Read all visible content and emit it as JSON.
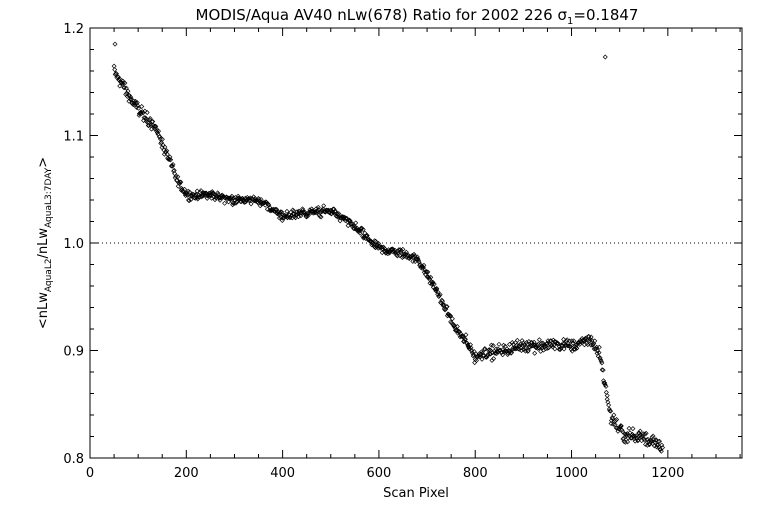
{
  "chart_data": {
    "type": "scatter",
    "title_main": "MODIS/Aqua AV40 nLw(678) Ratio for 2002 226 ",
    "title_sigma": "σ",
    "title_sigma_sub": "1",
    "title_value": "=0.1847",
    "xlabel": "Scan Pixel",
    "ylabel_parts": {
      "open": "<nLw",
      "sub1": "AquaL2",
      "mid": "/nLw",
      "sub2": "AquaL3:7DAY",
      "close": ">"
    },
    "xlim": [
      0,
      1354
    ],
    "ylim": [
      0.8,
      1.2
    ],
    "x_ticks": [
      "0",
      "200",
      "400",
      "600",
      "800",
      "1000",
      "1200"
    ],
    "y_ticks": [
      "0.8",
      "0.9",
      "1.0",
      "1.1",
      "1.2"
    ],
    "reference_line_y": 1.0,
    "grid": false,
    "marker": "diamond",
    "marker_color": "#000000",
    "trend": [
      [
        50,
        1.16
      ],
      [
        70,
        1.145
      ],
      [
        90,
        1.13
      ],
      [
        110,
        1.12
      ],
      [
        140,
        1.105
      ],
      [
        160,
        1.08
      ],
      [
        180,
        1.06
      ],
      [
        200,
        1.045
      ],
      [
        250,
        1.045
      ],
      [
        300,
        1.04
      ],
      [
        350,
        1.04
      ],
      [
        400,
        1.025
      ],
      [
        450,
        1.028
      ],
      [
        500,
        1.03
      ],
      [
        550,
        1.015
      ],
      [
        600,
        0.995
      ],
      [
        650,
        0.99
      ],
      [
        680,
        0.985
      ],
      [
        720,
        0.955
      ],
      [
        760,
        0.92
      ],
      [
        800,
        0.895
      ],
      [
        850,
        0.9
      ],
      [
        900,
        0.905
      ],
      [
        950,
        0.905
      ],
      [
        1000,
        0.905
      ],
      [
        1040,
        0.91
      ],
      [
        1060,
        0.895
      ],
      [
        1080,
        0.84
      ],
      [
        1110,
        0.82
      ],
      [
        1150,
        0.82
      ],
      [
        1190,
        0.81
      ]
    ],
    "outliers": [
      [
        52,
        1.185
      ],
      [
        1070,
        1.173
      ]
    ]
  }
}
